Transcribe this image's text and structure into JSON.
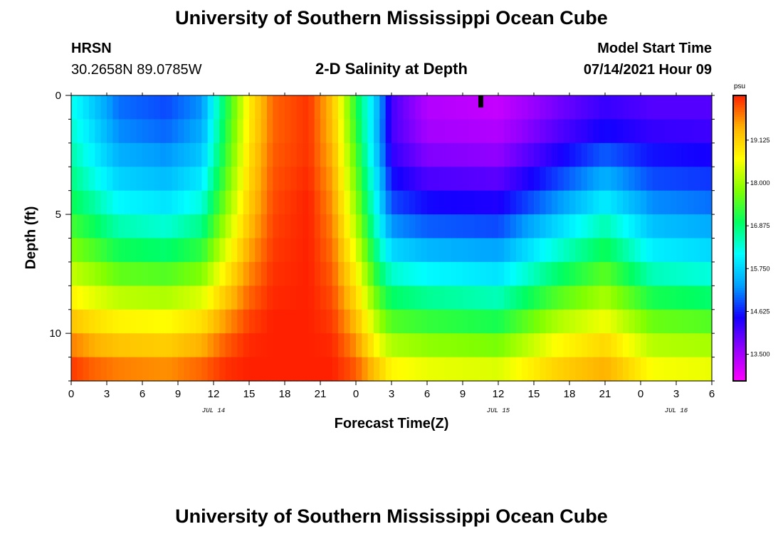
{
  "page_title_top": "University of Southern Mississippi Ocean Cube",
  "page_title_bottom": "University of Southern Mississippi Ocean Cube",
  "station": {
    "name": "HRSN",
    "coords": "30.2658N  89.0785W"
  },
  "plot_subtitle": "2-D Salinity at Depth",
  "model_start": {
    "label": "Model Start Time",
    "value": "07/14/2021 Hour 09"
  },
  "chart_data": {
    "type": "heatmap",
    "title": "2-D Salinity at Depth",
    "xlabel": "Forecast Time(Z)",
    "ylabel": "Depth (ft)",
    "x_range_hours": [
      0,
      54
    ],
    "x_ticks": [
      {
        "hour": 0,
        "label": "0"
      },
      {
        "hour": 3,
        "label": "3"
      },
      {
        "hour": 6,
        "label": "6"
      },
      {
        "hour": 9,
        "label": "9"
      },
      {
        "hour": 12,
        "label": "12"
      },
      {
        "hour": 15,
        "label": "15"
      },
      {
        "hour": 18,
        "label": "18"
      },
      {
        "hour": 21,
        "label": "21"
      },
      {
        "hour": 24,
        "label": "0"
      },
      {
        "hour": 27,
        "label": "3"
      },
      {
        "hour": 30,
        "label": "6"
      },
      {
        "hour": 33,
        "label": "9"
      },
      {
        "hour": 36,
        "label": "12"
      },
      {
        "hour": 39,
        "label": "15"
      },
      {
        "hour": 42,
        "label": "18"
      },
      {
        "hour": 45,
        "label": "21"
      },
      {
        "hour": 48,
        "label": "0"
      },
      {
        "hour": 51,
        "label": "3"
      },
      {
        "hour": 54,
        "label": "6"
      }
    ],
    "date_labels": [
      {
        "hour": 12,
        "label": "JUL 14"
      },
      {
        "hour": 36,
        "label": "JUL 15"
      },
      {
        "hour": 51,
        "label": "JUL 16"
      }
    ],
    "y_range_ft": [
      0,
      12
    ],
    "y_ticks": [
      {
        "depth": 0,
        "label": "0"
      },
      {
        "depth": 5,
        "label": "5"
      },
      {
        "depth": 10,
        "label": "10"
      }
    ],
    "current_time_marker_hour": 34.5,
    "colorbar": {
      "unit": "psu",
      "min": 12.8,
      "max": 20.3,
      "ticks": [
        "19.125",
        "18.000",
        "16.875",
        "15.750",
        "14.625",
        "13.500"
      ],
      "colors": [
        "#ff00ff",
        "#9400ff",
        "#1400ff",
        "#00a0ff",
        "#00ffff",
        "#00ff60",
        "#80ff00",
        "#ffff00",
        "#ffb000",
        "#ff2000"
      ]
    },
    "depth_levels_ft": [
      0.0,
      1.0,
      2.0,
      3.0,
      4.0,
      5.0,
      6.0,
      7.0,
      8.0,
      9.0,
      10.0,
      11.0,
      12.0
    ],
    "keyframes": [
      {
        "hour": 0,
        "profile": [
          16.2,
          16.3,
          16.5,
          16.7,
          16.9,
          17.2,
          17.6,
          18.0,
          18.5,
          19.0,
          19.5,
          20.0,
          20.3
        ]
      },
      {
        "hour": 2,
        "profile": [
          15.6,
          15.7,
          15.9,
          16.1,
          16.4,
          16.8,
          17.2,
          17.7,
          18.2,
          18.7,
          19.2,
          19.7,
          20.1
        ]
      },
      {
        "hour": 4,
        "profile": [
          15.0,
          15.1,
          15.3,
          15.6,
          15.9,
          16.3,
          16.8,
          17.3,
          17.9,
          18.5,
          19.0,
          19.5,
          20.0
        ]
      },
      {
        "hour": 8,
        "profile": [
          14.8,
          14.9,
          15.1,
          15.4,
          15.7,
          16.1,
          16.6,
          17.2,
          17.8,
          18.4,
          18.9,
          19.4,
          19.9
        ]
      },
      {
        "hour": 11,
        "profile": [
          15.2,
          15.3,
          15.5,
          15.8,
          16.1,
          16.5,
          17.0,
          17.5,
          18.1,
          18.7,
          19.2,
          19.7,
          20.1
        ]
      },
      {
        "hour": 13,
        "profile": [
          17.0,
          17.1,
          17.2,
          17.4,
          17.6,
          17.9,
          18.2,
          18.6,
          19.0,
          19.4,
          19.8,
          20.1,
          20.3
        ]
      },
      {
        "hour": 15,
        "profile": [
          18.8,
          18.8,
          18.9,
          19.0,
          19.1,
          19.2,
          19.4,
          19.6,
          19.8,
          20.0,
          20.2,
          20.3,
          20.3
        ]
      },
      {
        "hour": 17,
        "profile": [
          19.9,
          19.9,
          19.9,
          20.0,
          20.0,
          20.1,
          20.1,
          20.2,
          20.2,
          20.3,
          20.3,
          20.3,
          20.3
        ]
      },
      {
        "hour": 20,
        "profile": [
          20.2,
          20.2,
          20.2,
          20.2,
          20.3,
          20.3,
          20.3,
          20.3,
          20.3,
          20.3,
          20.3,
          20.3,
          20.3
        ]
      },
      {
        "hour": 22,
        "profile": [
          19.3,
          19.3,
          19.4,
          19.5,
          19.6,
          19.7,
          19.8,
          19.9,
          20.0,
          20.1,
          20.2,
          20.3,
          20.3
        ]
      },
      {
        "hour": 24,
        "profile": [
          17.2,
          17.2,
          17.4,
          17.6,
          17.8,
          18.0,
          18.3,
          18.6,
          18.9,
          19.2,
          19.5,
          19.8,
          20.1
        ]
      },
      {
        "hour": 26,
        "profile": [
          15.4,
          15.3,
          15.3,
          15.5,
          15.7,
          15.9,
          16.3,
          16.7,
          17.2,
          17.7,
          18.2,
          18.8,
          19.4
        ]
      },
      {
        "hour": 27,
        "profile": [
          14.2,
          14.1,
          14.2,
          14.4,
          14.7,
          15.0,
          15.5,
          16.1,
          16.7,
          17.2,
          17.8,
          18.4,
          19.0
        ]
      },
      {
        "hour": 30,
        "profile": [
          13.4,
          13.4,
          13.6,
          13.9,
          14.3,
          14.7,
          15.2,
          15.8,
          16.4,
          17.0,
          17.6,
          18.2,
          18.8
        ]
      },
      {
        "hour": 36,
        "profile": [
          13.2,
          13.3,
          13.5,
          13.8,
          14.2,
          14.6,
          15.1,
          15.6,
          16.2,
          16.8,
          17.4,
          18.1,
          18.7
        ]
      },
      {
        "hour": 41,
        "profile": [
          13.8,
          13.9,
          14.2,
          14.6,
          15.0,
          15.5,
          16.1,
          16.6,
          17.2,
          17.8,
          18.4,
          18.9,
          19.3
        ]
      },
      {
        "hour": 45,
        "profile": [
          14.2,
          14.3,
          14.7,
          15.2,
          15.7,
          16.3,
          16.8,
          17.3,
          17.8,
          18.3,
          18.8,
          19.3,
          19.6
        ]
      },
      {
        "hour": 49,
        "profile": [
          14.0,
          14.1,
          14.4,
          14.7,
          15.0,
          15.4,
          15.8,
          16.2,
          16.8,
          17.4,
          17.9,
          18.4,
          18.8
        ]
      },
      {
        "hour": 54,
        "profile": [
          14.0,
          14.1,
          14.3,
          14.6,
          14.9,
          15.2,
          15.6,
          16.0,
          16.6,
          17.2,
          17.8,
          18.3,
          18.7
        ]
      }
    ]
  }
}
